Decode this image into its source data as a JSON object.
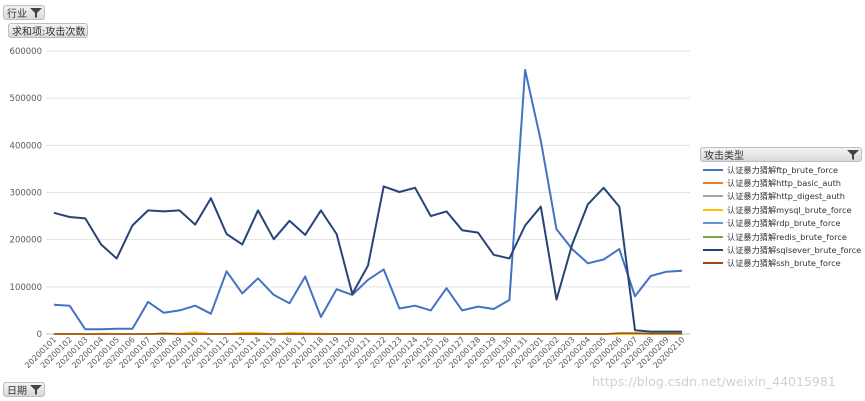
{
  "filters": {
    "industry_label": "行业",
    "value_label": "求和项:攻击次数",
    "series_field_label": "攻击类型",
    "axis_field_label": "日期"
  },
  "watermark": "https://blog.csdn.net/weixin_44015981",
  "chart_data": {
    "type": "line",
    "ylim": [
      0,
      600000
    ],
    "yticks": [
      "0",
      "100000",
      "200000",
      "300000",
      "400000",
      "500000",
      "600000"
    ],
    "yticks_values": [
      0,
      100000,
      200000,
      300000,
      400000,
      500000,
      600000
    ],
    "grid": true,
    "legend_position": "right",
    "categories": [
      "20200101",
      "20200102",
      "20200103",
      "20200104",
      "20200105",
      "20200106",
      "20200107",
      "20200108",
      "20200109",
      "20200110",
      "20200111",
      "20200112",
      "20200113",
      "20200114",
      "20200115",
      "20200116",
      "20200117",
      "20200118",
      "20200119",
      "20200120",
      "20200121",
      "20200122",
      "20200123",
      "20200124",
      "20200125",
      "20200126",
      "20200127",
      "20200128",
      "20200129",
      "20200130",
      "20200131",
      "20200201",
      "20200202",
      "20200203",
      "20200204",
      "20200205",
      "20200206",
      "20200207",
      "20200208",
      "20200209",
      "20200210"
    ],
    "series": [
      {
        "name": "认证暴力猜解ftp_brute_force",
        "color": "#4472c4",
        "width": 2,
        "values": [
          62000,
          60000,
          10000,
          10000,
          11000,
          11000,
          68000,
          45000,
          50000,
          60000,
          43000,
          133000,
          86000,
          118000,
          83000,
          65000,
          122000,
          36000,
          95000,
          83000,
          115000,
          137000,
          54000,
          60000,
          50000,
          97000,
          50000,
          58000,
          53000,
          72000,
          560000,
          410000,
          222000,
          180000,
          150000,
          158000,
          180000,
          80000,
          123000,
          132000,
          134000
        ]
      },
      {
        "name": "认证暴力猜解http_basic_auth",
        "color": "#ed7d31",
        "width": 1.2,
        "values": [
          0,
          0,
          0,
          0,
          0,
          0,
          0,
          0,
          0,
          0,
          0,
          0,
          0,
          0,
          0,
          0,
          0,
          0,
          0,
          0,
          0,
          0,
          0,
          0,
          0,
          0,
          0,
          0,
          0,
          0,
          0,
          0,
          0,
          0,
          0,
          0,
          0,
          0,
          0,
          0,
          0
        ]
      },
      {
        "name": "认证暴力猜解http_digest_auth",
        "color": "#a5a5a5",
        "width": 1.2,
        "values": [
          0,
          0,
          0,
          0,
          0,
          0,
          0,
          0,
          0,
          0,
          0,
          0,
          0,
          0,
          0,
          0,
          0,
          0,
          0,
          0,
          0,
          0,
          0,
          0,
          0,
          0,
          0,
          0,
          0,
          0,
          0,
          0,
          0,
          0,
          0,
          0,
          0,
          0,
          0,
          0,
          0
        ]
      },
      {
        "name": "认证暴力猜解mysql_brute_force",
        "color": "#ffc000",
        "width": 1.5,
        "values": [
          0,
          0,
          0,
          1000,
          500,
          0,
          0,
          2000,
          1000,
          4000,
          500,
          0,
          3000,
          2500,
          0,
          3000,
          2000,
          1000,
          500,
          0,
          0,
          0,
          0,
          0,
          0,
          0,
          0,
          0,
          0,
          0,
          0,
          0,
          0,
          0,
          0,
          0,
          0,
          0,
          0,
          0,
          0
        ]
      },
      {
        "name": "认证暴力猜解rdp_brute_force",
        "color": "#5b9bd5",
        "width": 1.2,
        "values": [
          0,
          0,
          0,
          0,
          0,
          0,
          0,
          0,
          0,
          0,
          0,
          0,
          0,
          0,
          0,
          0,
          0,
          0,
          0,
          0,
          0,
          0,
          0,
          0,
          0,
          0,
          0,
          0,
          0,
          0,
          0,
          0,
          0,
          0,
          0,
          0,
          0,
          0,
          0,
          0,
          0
        ]
      },
      {
        "name": "认证暴力猜解redis_brute_force",
        "color": "#70ad47",
        "width": 1.2,
        "values": [
          0,
          0,
          0,
          0,
          0,
          0,
          0,
          0,
          0,
          0,
          0,
          0,
          0,
          0,
          0,
          0,
          0,
          0,
          0,
          0,
          0,
          0,
          0,
          0,
          0,
          0,
          0,
          0,
          0,
          0,
          0,
          0,
          0,
          0,
          0,
          0,
          0,
          0,
          0,
          0,
          0
        ]
      },
      {
        "name": "认证暴力猜解sqlsever_brute_force",
        "color": "#264478",
        "width": 2,
        "values": [
          257000,
          248000,
          245000,
          190000,
          160000,
          230000,
          262000,
          260000,
          262000,
          232000,
          288000,
          212000,
          190000,
          262000,
          201000,
          240000,
          210000,
          262000,
          212000,
          85000,
          145000,
          313000,
          301000,
          310000,
          250000,
          260000,
          220000,
          215000,
          168000,
          160000,
          230000,
          270000,
          73000,
          190000,
          275000,
          310000,
          270000,
          8000,
          5000,
          5000,
          5000
        ]
      },
      {
        "name": "认证暴力猜解ssh_brute_force",
        "color": "#9e480e",
        "width": 1.5,
        "values": [
          0,
          0,
          0,
          0,
          0,
          0,
          0,
          1000,
          0,
          0,
          0,
          0,
          0,
          0,
          0,
          0,
          0,
          0,
          0,
          0,
          0,
          0,
          0,
          0,
          0,
          0,
          0,
          0,
          0,
          0,
          0,
          0,
          0,
          0,
          0,
          0,
          2000,
          2000,
          1000,
          1000,
          1000
        ]
      }
    ]
  }
}
